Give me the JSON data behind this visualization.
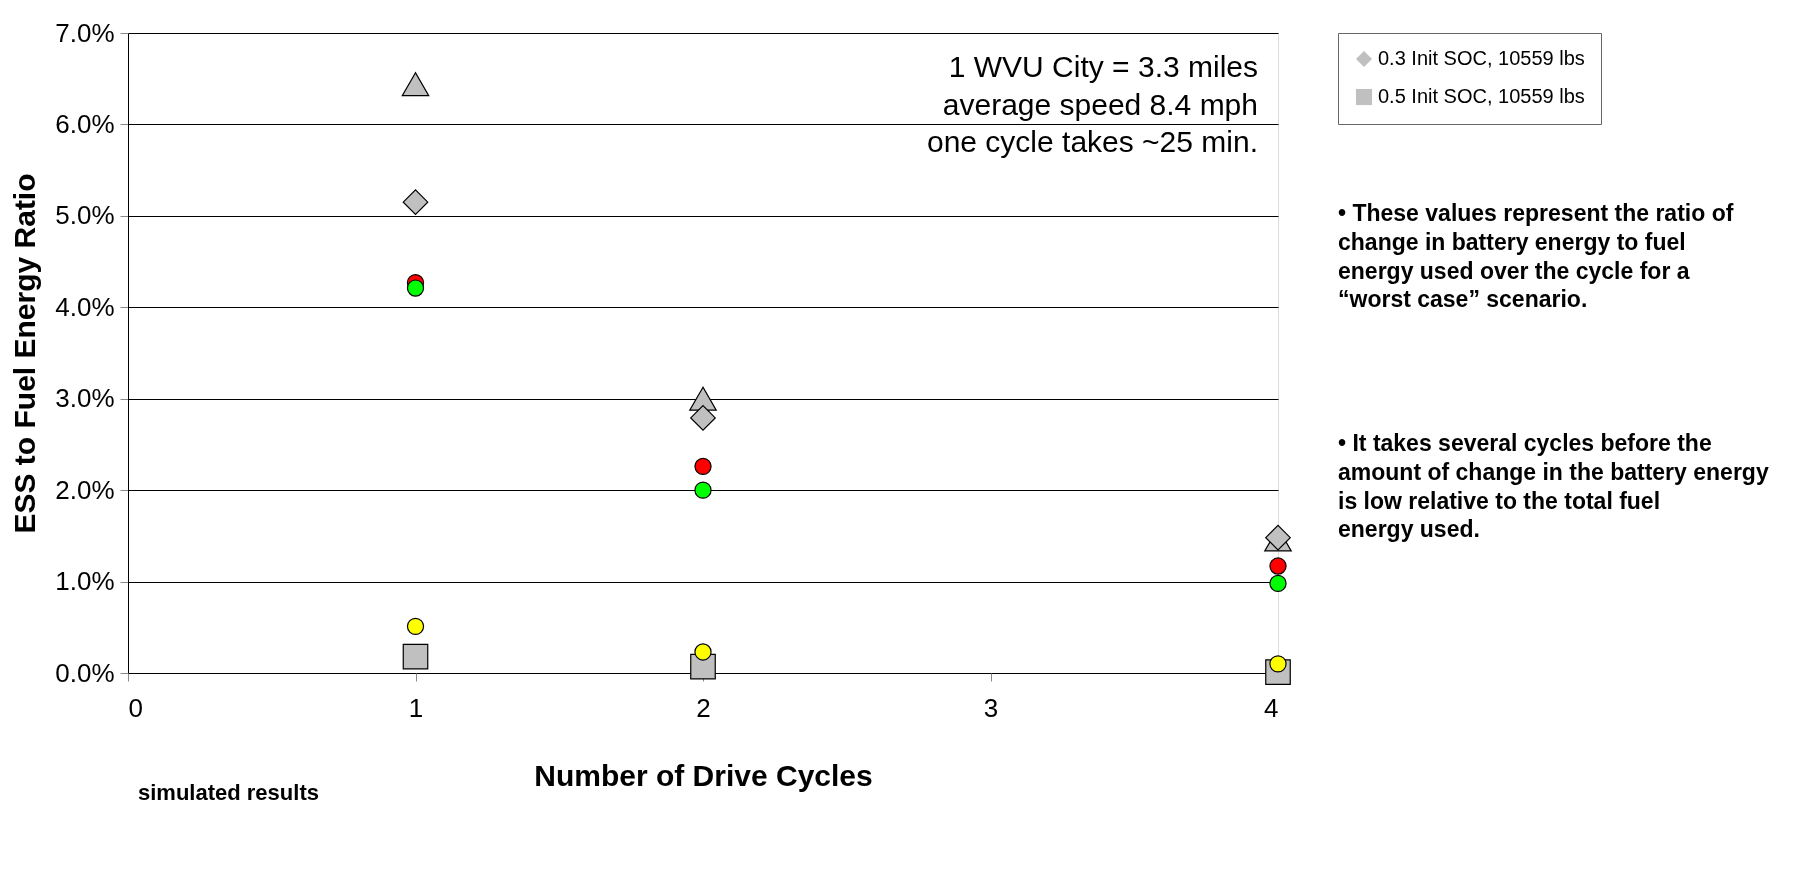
{
  "chart_data": {
    "type": "scatter",
    "xlabel": "Number of Drive Cycles",
    "ylabel": "ESS to Fuel Energy Ratio",
    "x": [
      1,
      2,
      3,
      4
    ],
    "series": [
      {
        "name": "0.3 Init SOC, 10559 lbs",
        "color": "#c0c0c0",
        "marker": "diamond",
        "values": [
          5.15,
          2.79,
          null,
          1.48
        ]
      },
      {
        "name": "0.5 Init SOC, 10559 lbs",
        "color": "#c0c0c0",
        "marker": "square",
        "values": [
          0.18,
          0.07,
          null,
          0.01
        ]
      },
      {
        "color": "#c0c0c0",
        "marker": "triangle",
        "values": [
          6.44,
          3.0,
          null,
          1.46
        ]
      },
      {
        "color": "#ff0000",
        "marker": "circle",
        "values": [
          4.27,
          2.26,
          null,
          1.17
        ]
      },
      {
        "color": "#00ff00",
        "marker": "circle",
        "values": [
          4.21,
          2.0,
          null,
          0.98
        ]
      },
      {
        "color": "#ffff00",
        "marker": "circle",
        "values": [
          0.51,
          0.23,
          null,
          0.1
        ]
      }
    ],
    "xlim": [
      0,
      4
    ],
    "xticks": [
      0,
      1,
      2,
      3,
      4
    ],
    "ylim": [
      0,
      7
    ],
    "yticks": [
      {
        "value": 0,
        "label": "0.0%"
      },
      {
        "value": 1,
        "label": "1.0%"
      },
      {
        "value": 2,
        "label": "2.0%"
      },
      {
        "value": 3,
        "label": "3.0%"
      },
      {
        "value": 4,
        "label": "4.0%"
      },
      {
        "value": 5,
        "label": "5.0%"
      },
      {
        "value": 6,
        "label": "6.0%"
      },
      {
        "value": 7,
        "label": "7.0%"
      }
    ],
    "grid": "y",
    "legend": "right",
    "annotations": [
      "1 WVU City = 3.3 miles\naverage speed 8.4 mph\none cycle takes ~25 min.",
      "simulated results",
      "• These values represent the ratio of change in battery energy to fuel energy used over the cycle for a “worst case” scenario.",
      "• It takes several cycles before the amount of change in the battery energy is low relative to the total fuel energy used."
    ]
  }
}
